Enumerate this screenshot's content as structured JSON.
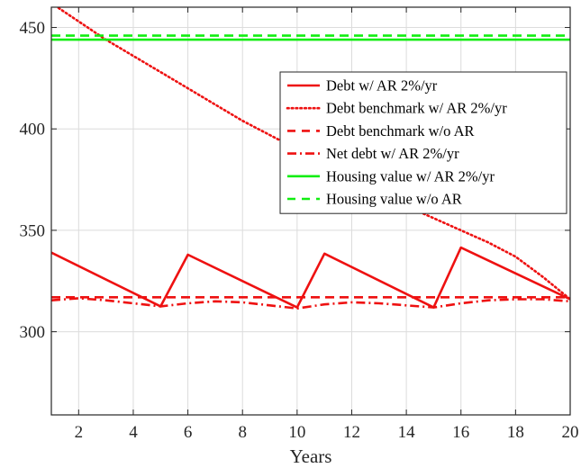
{
  "chart_data": {
    "type": "line",
    "title": "",
    "xlabel": "Years",
    "ylabel": "",
    "xlim": [
      1,
      20
    ],
    "ylim": [
      259,
      460
    ],
    "xticks": [
      2,
      4,
      6,
      8,
      10,
      12,
      14,
      16,
      18,
      20
    ],
    "yticks": [
      300,
      350,
      400,
      450
    ],
    "grid": true,
    "legend_position": "upper-right",
    "series": [
      {
        "name": "Debt w/ AR 2%/yr",
        "color": "#ee1111",
        "style": "solid",
        "x": [
          1,
          5,
          6,
          10,
          11,
          15,
          16,
          20
        ],
        "y": [
          339,
          312.5,
          338,
          312,
          338.5,
          312,
          341.5,
          316
        ]
      },
      {
        "name": "Debt benchmark w/ AR 2%/yr",
        "color": "#ee1111",
        "style": "dotted",
        "x": [
          1,
          2,
          3,
          4,
          5,
          6,
          7,
          8,
          9,
          10,
          11,
          12,
          13,
          14,
          15,
          16,
          17,
          18,
          19,
          20
        ],
        "y": [
          462,
          453,
          444,
          436,
          428,
          420,
          412,
          404,
          397,
          390,
          383,
          376,
          369,
          362,
          356,
          350,
          344,
          337,
          327,
          316
        ]
      },
      {
        "name": "Debt benchmark w/o AR",
        "color": "#ee1111",
        "style": "dashed",
        "x": [
          1,
          20
        ],
        "y": [
          317,
          317
        ]
      },
      {
        "name": "Net debt w/ AR 2%/yr",
        "color": "#ee1111",
        "style": "dashdot",
        "x": [
          1,
          2,
          3,
          4,
          5,
          6,
          7,
          8,
          9,
          10,
          11,
          12,
          13,
          14,
          15,
          16,
          17,
          18,
          19,
          20
        ],
        "y": [
          315.5,
          316.5,
          315.5,
          314,
          312.5,
          314,
          315,
          314.5,
          313,
          311.5,
          313.5,
          314.5,
          314,
          313,
          312,
          314,
          315.5,
          316,
          316,
          315
        ]
      },
      {
        "name": "Housing value w/ AR 2%/yr",
        "color": "#11ee11",
        "style": "solid",
        "x": [
          1,
          20
        ],
        "y": [
          444,
          444
        ]
      },
      {
        "name": "Housing value w/o AR",
        "color": "#11ee11",
        "style": "dashed",
        "x": [
          1,
          20
        ],
        "y": [
          446,
          446
        ]
      }
    ]
  }
}
